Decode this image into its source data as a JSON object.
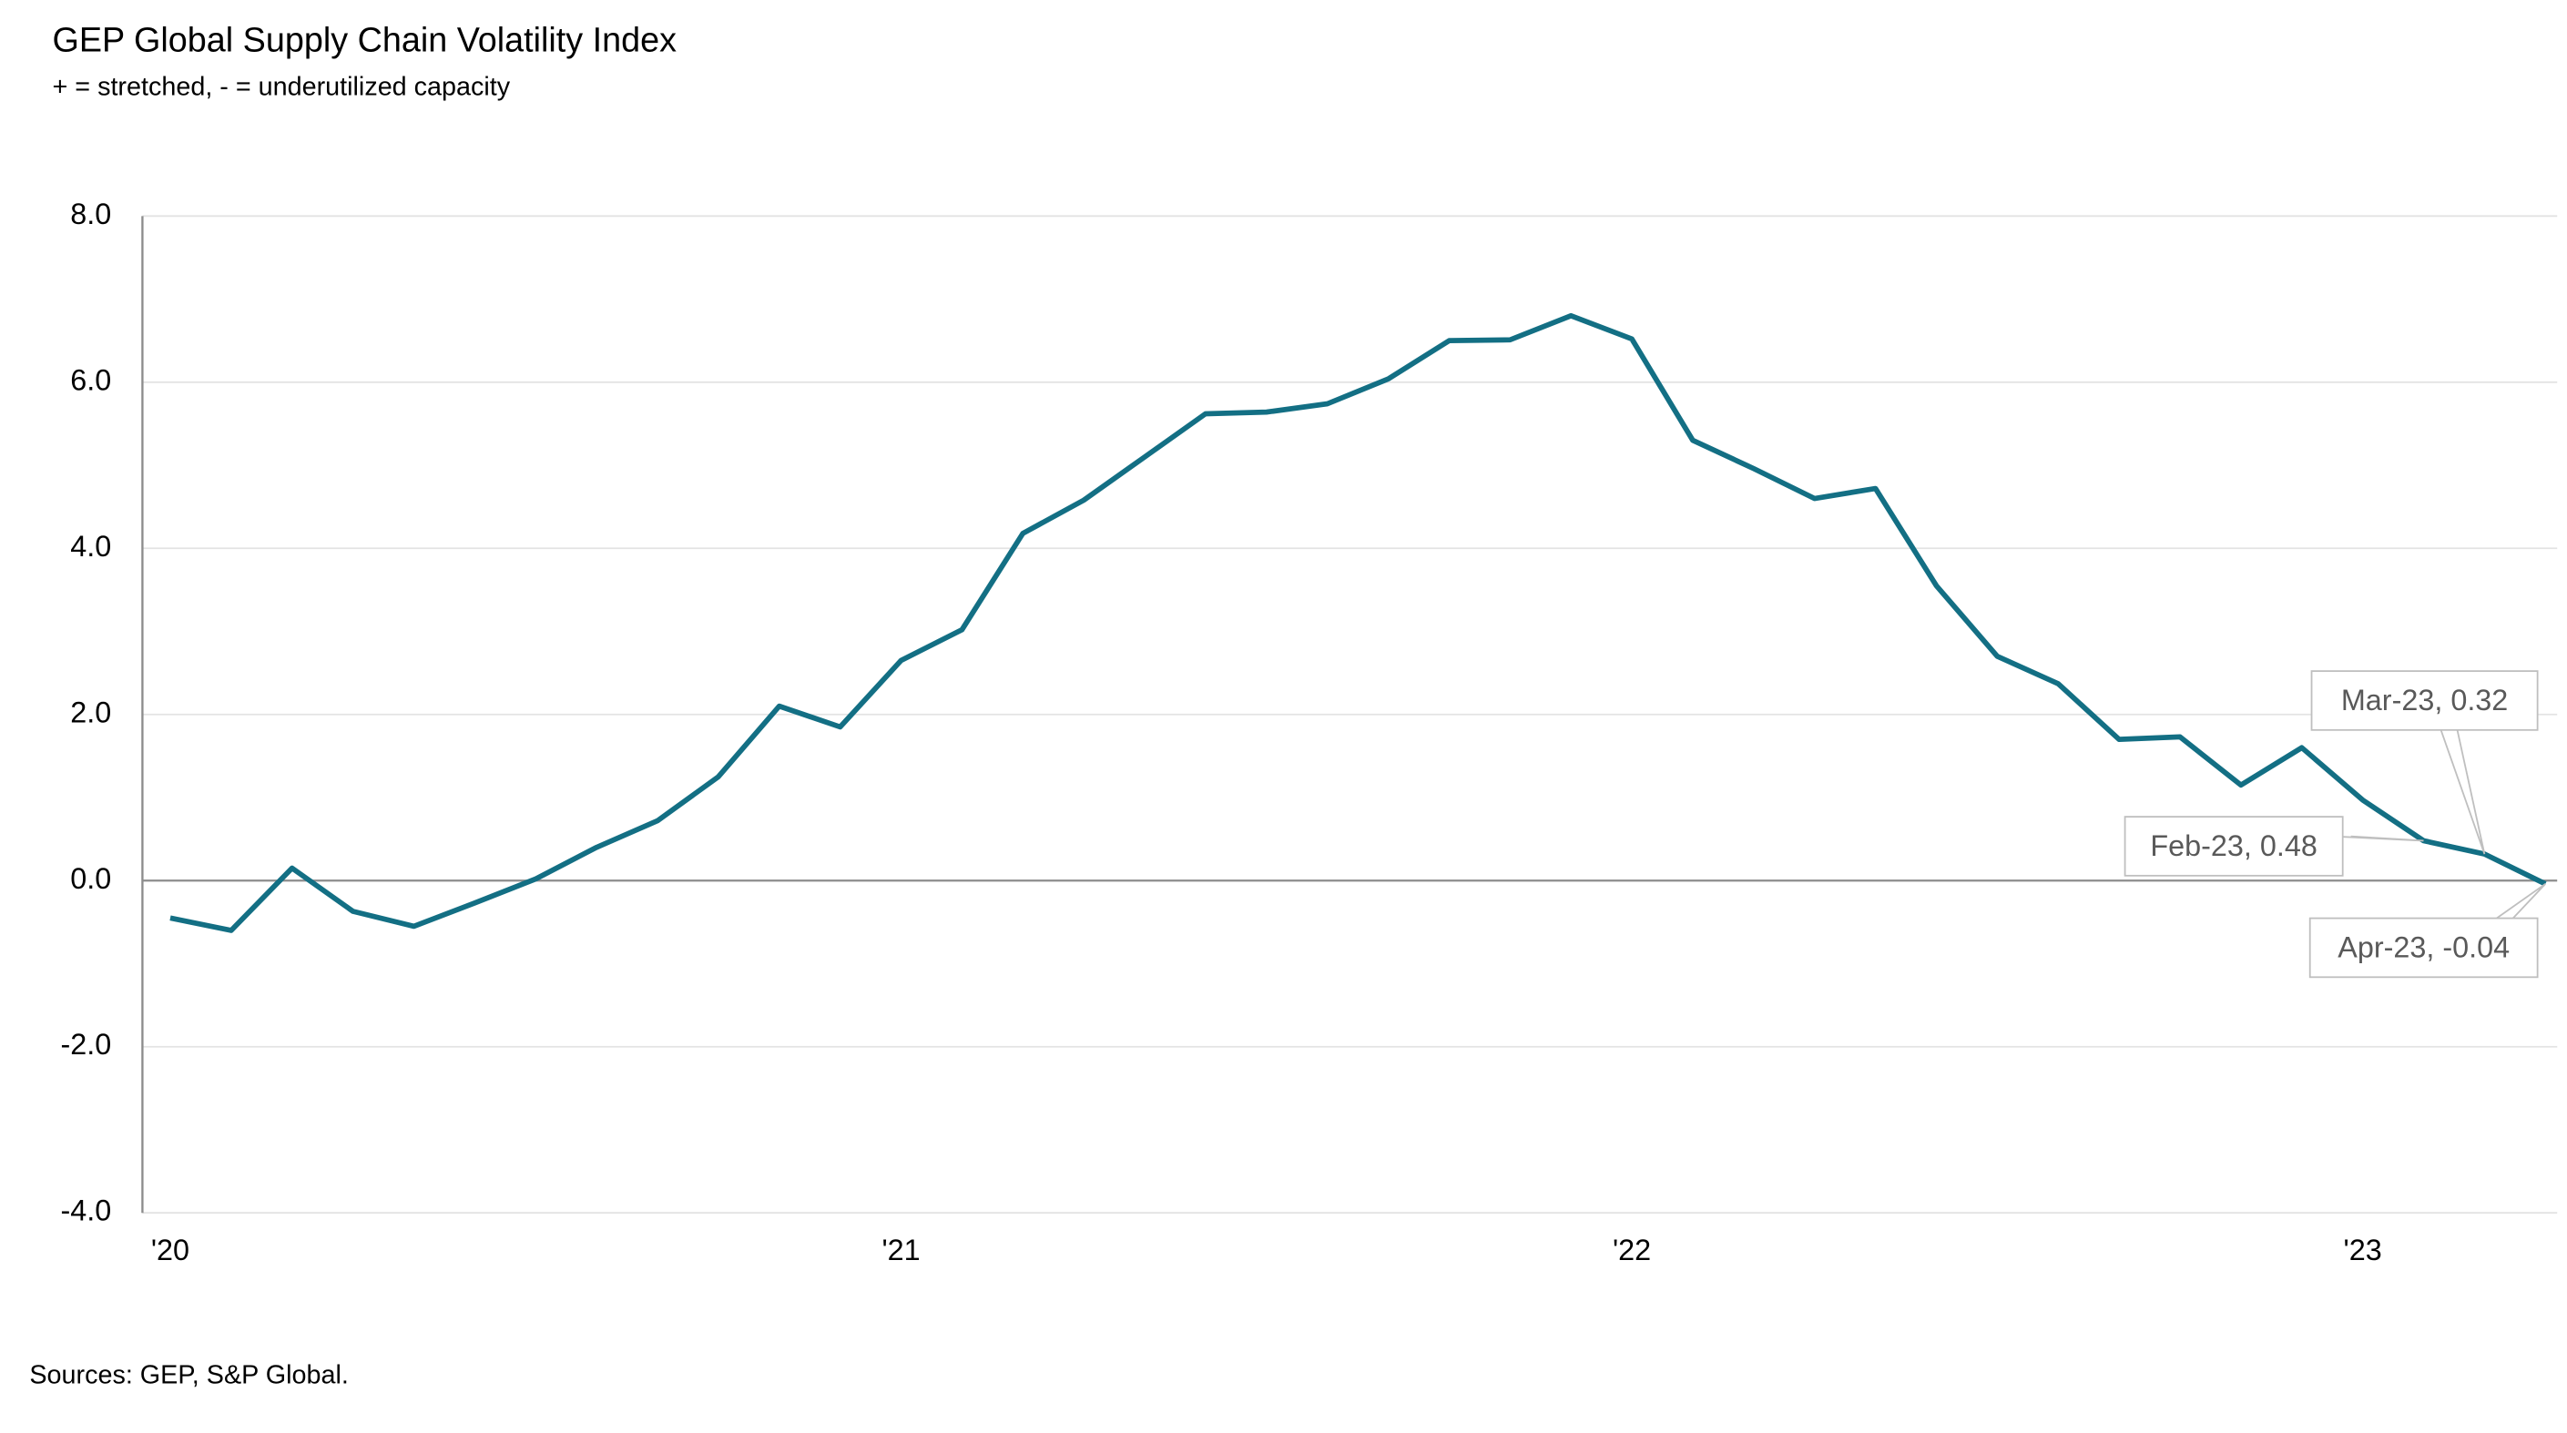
{
  "chart_data": {
    "type": "line",
    "title": "GEP Global Supply Chain Volatility Index",
    "subtitle": "+ = stretched, - = underutilized capacity",
    "source": "Sources: GEP, S&P Global.",
    "categories": [
      "'20",
      null,
      null,
      null,
      null,
      null,
      null,
      null,
      null,
      null,
      null,
      null,
      "'21",
      null,
      null,
      null,
      null,
      null,
      null,
      null,
      null,
      null,
      null,
      null,
      "'22",
      null,
      null,
      null,
      null,
      null,
      null,
      null,
      null,
      null,
      null,
      null,
      "'23",
      null,
      null,
      null
    ],
    "series": [
      {
        "name": "GEP Global Supply Chain Volatility Index",
        "color": "#136f84",
        "values": [
          -0.45,
          -0.6,
          0.15,
          -0.37,
          -0.55,
          -0.27,
          0.02,
          0.4,
          0.72,
          1.25,
          2.1,
          1.85,
          2.65,
          3.02,
          4.18,
          4.58,
          5.1,
          5.62,
          5.64,
          5.74,
          6.04,
          6.5,
          6.51,
          6.8,
          6.52,
          5.3,
          4.96,
          4.6,
          4.72,
          3.55,
          2.7,
          2.37,
          1.7,
          1.73,
          1.15,
          1.6,
          0.97,
          0.48,
          0.32,
          -0.04
        ],
        "value_labels": [
          null,
          null,
          null,
          null,
          null,
          null,
          null,
          null,
          null,
          null,
          null,
          null,
          null,
          null,
          null,
          null,
          null,
          null,
          null,
          null,
          null,
          null,
          null,
          null,
          null,
          null,
          null,
          null,
          null,
          null,
          null,
          null,
          null,
          null,
          null,
          null,
          null,
          "Feb-23, 0.48",
          "Mar-23, 0.32",
          "Apr-23, -0.04"
        ]
      }
    ],
    "ylim": [
      -4,
      8
    ],
    "yticks": [
      {
        "value": -4,
        "label": "-4.0"
      },
      {
        "value": -2,
        "label": "-2.0"
      },
      {
        "value": 0,
        "label": "0.0"
      },
      {
        "value": 2,
        "label": "2.0"
      },
      {
        "value": 4,
        "label": "4.0"
      },
      {
        "value": 6,
        "label": "6.0"
      },
      {
        "value": 8,
        "label": "8.0"
      }
    ],
    "grid": true
  }
}
